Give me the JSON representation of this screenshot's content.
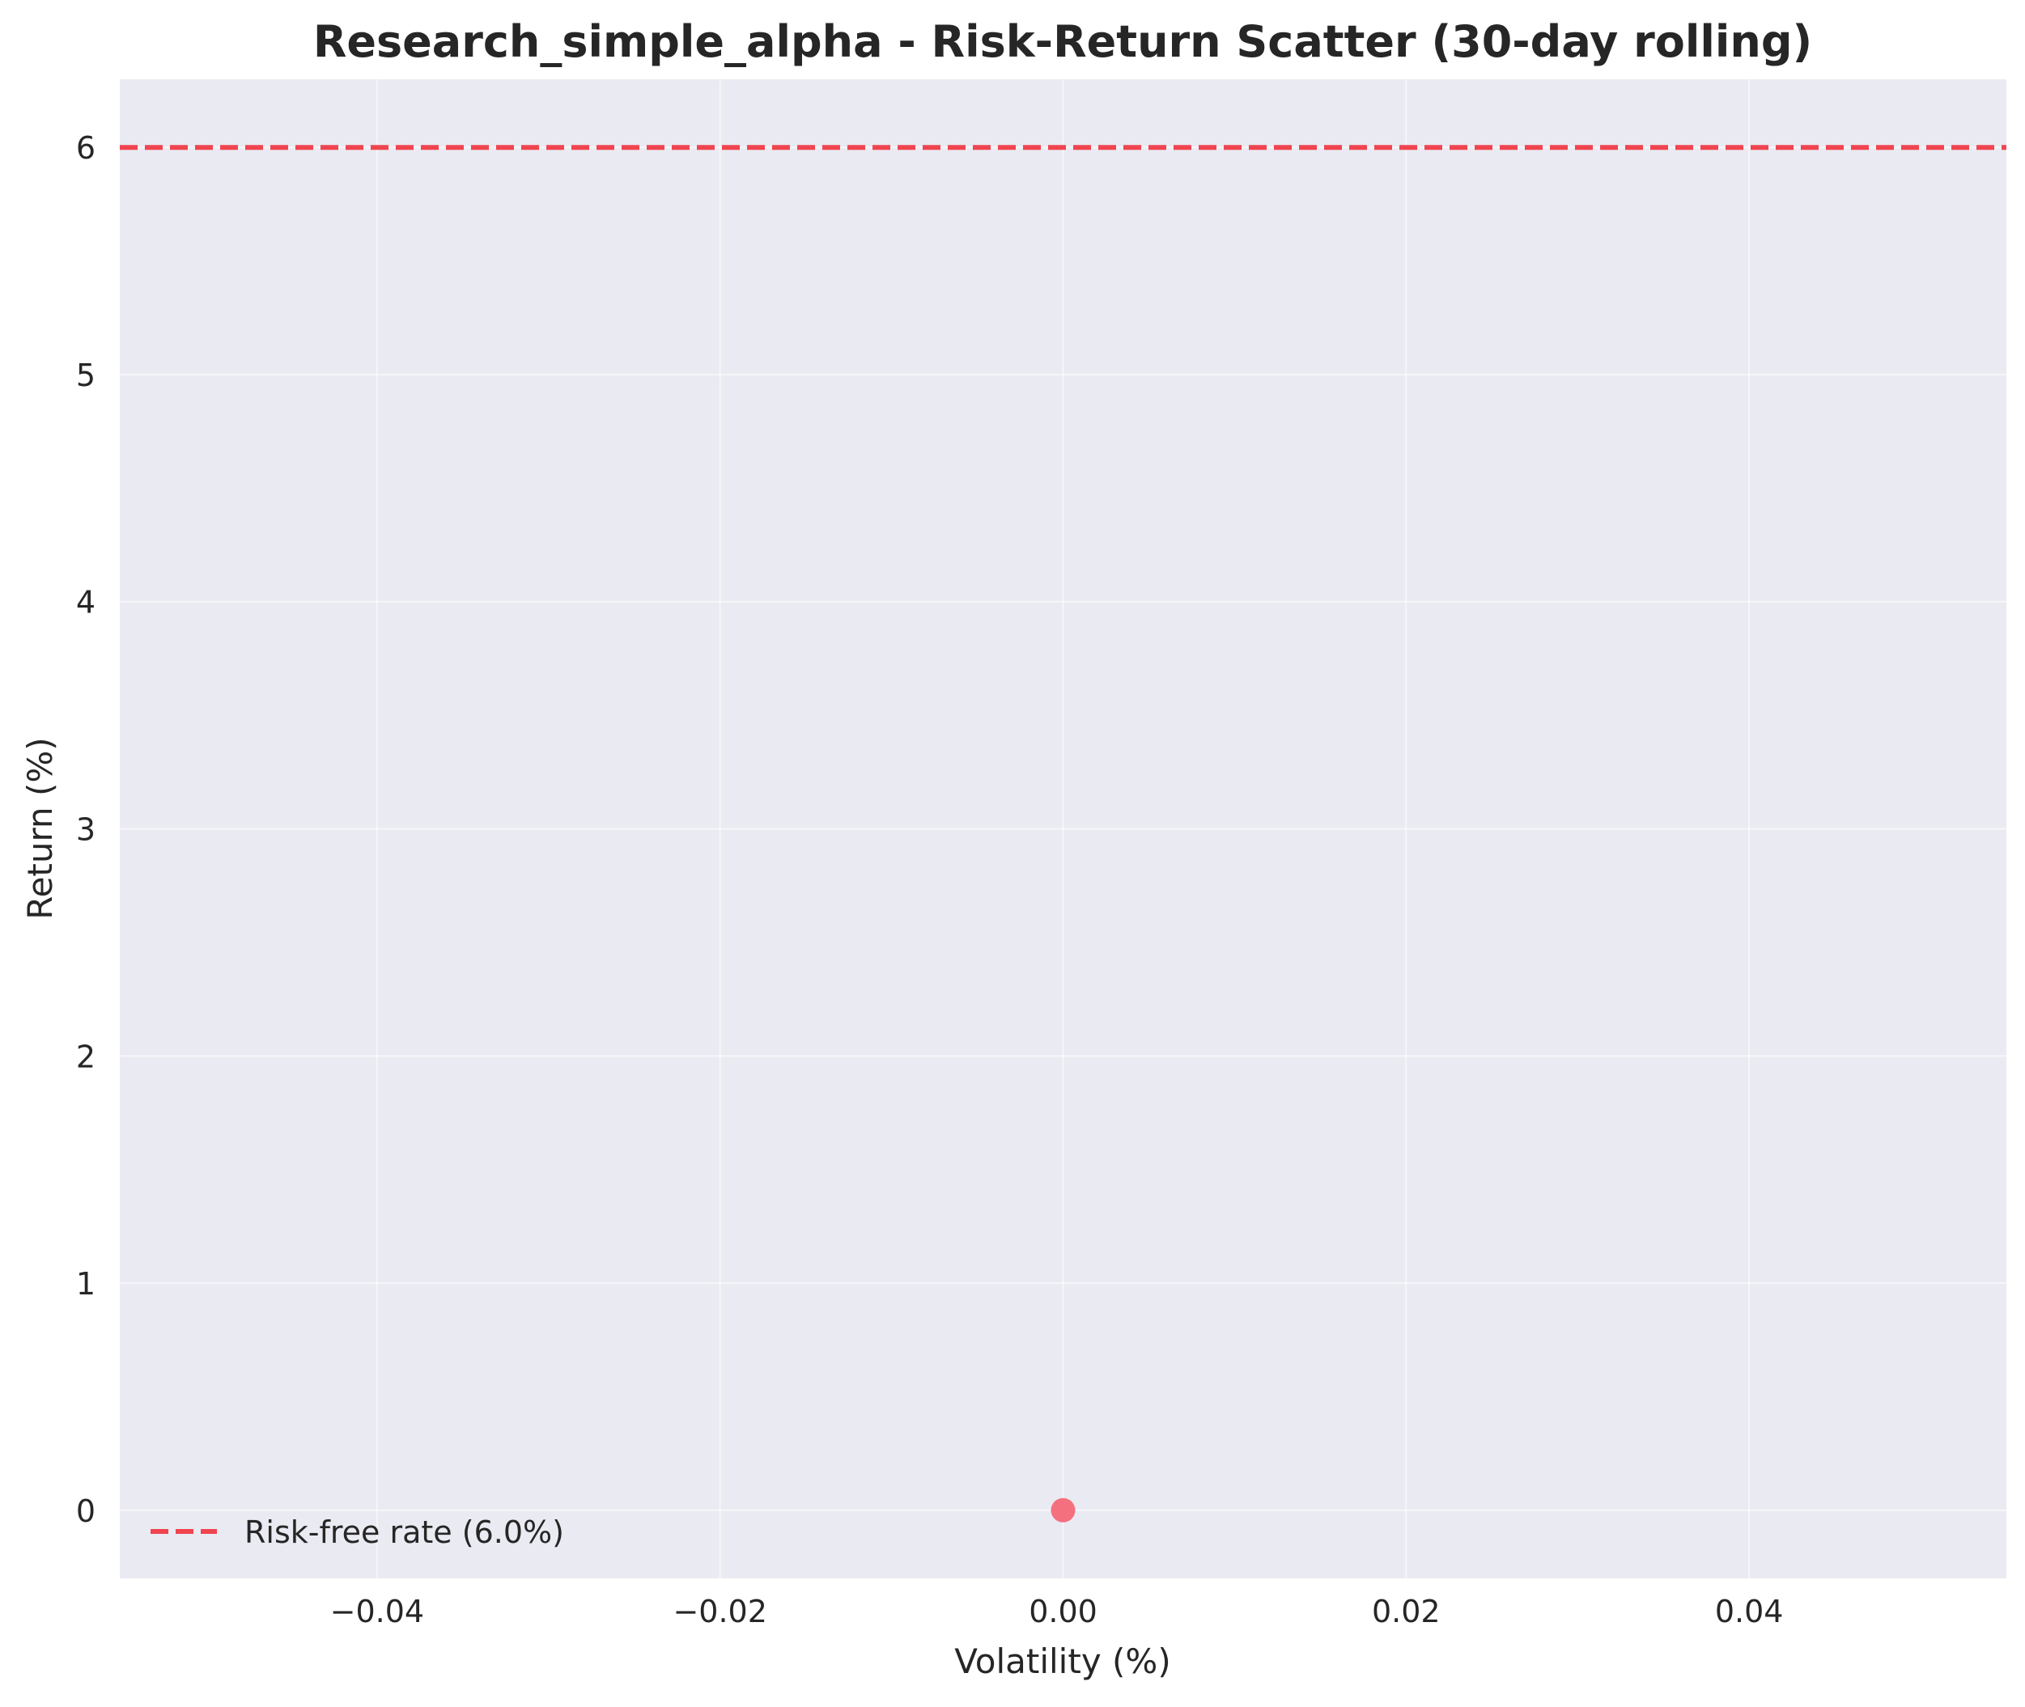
{
  "chart_data": {
    "type": "scatter",
    "title": "Research_simple_alpha - Risk-Return Scatter (30-day rolling)",
    "xlabel": "Volatility (%)",
    "ylabel": "Return (%)",
    "xlim": [
      -0.055,
      0.055
    ],
    "ylim": [
      -0.3,
      6.3
    ],
    "x_ticks": [
      -0.04,
      -0.02,
      0.0,
      0.02,
      0.04
    ],
    "x_tick_labels": [
      "−0.04",
      "−0.02",
      "0.00",
      "0.02",
      "0.04"
    ],
    "y_ticks": [
      0,
      1,
      2,
      3,
      4,
      5,
      6
    ],
    "y_tick_labels": [
      "0",
      "1",
      "2",
      "3",
      "4",
      "5",
      "6"
    ],
    "points": [
      {
        "x": 0.0,
        "y": 0.0
      }
    ],
    "point_color": "#f5707f",
    "reference_line": {
      "y": 6.0,
      "label": "Risk-free rate (6.0%)",
      "color": "#f0444f",
      "style": "dashed"
    },
    "grid": true,
    "background_color": "#eaeaf2",
    "legend_position": "lower-left"
  }
}
